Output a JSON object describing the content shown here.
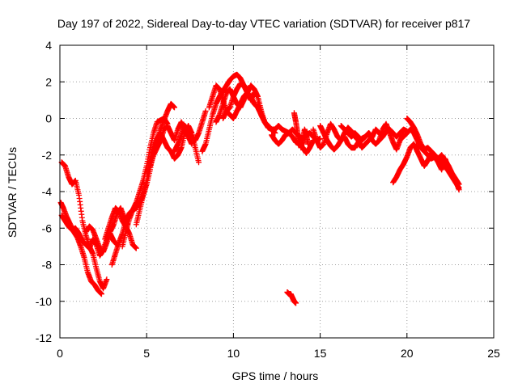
{
  "chart_data": {
    "type": "scatter",
    "title": "Day 197 of 2022, Sidereal Day-to-day VTEC variation (SDTVAR) for receiver p817",
    "xlabel": "GPS time / hours",
    "ylabel": "SDTVAR / TECUs",
    "xlim": [
      0,
      25
    ],
    "ylim": [
      -12,
      4
    ],
    "xticks": [
      0,
      5,
      10,
      15,
      20,
      25
    ],
    "yticks": [
      -12,
      -10,
      -8,
      -6,
      -4,
      -2,
      0,
      2,
      4
    ],
    "grid": true,
    "marker": "+",
    "color": "#ff0000",
    "series": [
      {
        "name": "SDTVAR",
        "tracks": [
          {
            "x": [
              0.1,
              0.3,
              0.5,
              0.7,
              0.9,
              1.1,
              1.3,
              1.5,
              1.7,
              1.9,
              2.1,
              2.3,
              2.5,
              2.7
            ],
            "y": [
              -2.4,
              -2.6,
              -3.2,
              -3.6,
              -3.4,
              -4.2,
              -5.6,
              -6.4,
              -7.0,
              -7.4,
              -8.2,
              -8.9,
              -9.3,
              -8.8
            ]
          },
          {
            "x": [
              0.05,
              0.2,
              0.4,
              0.6,
              0.8,
              1.0,
              1.2,
              1.4,
              1.6,
              1.8,
              2.0,
              2.2,
              2.4
            ],
            "y": [
              -4.6,
              -4.9,
              -5.4,
              -5.8,
              -6.2,
              -6.5,
              -7.0,
              -7.6,
              -8.4,
              -8.9,
              -9.1,
              -9.4,
              -9.6
            ]
          },
          {
            "x": [
              0.1,
              0.3,
              0.5,
              0.7,
              0.9,
              1.1,
              1.3,
              1.5,
              1.7,
              1.9,
              2.1,
              2.3,
              2.5,
              2.7,
              2.9,
              3.1,
              3.3
            ],
            "y": [
              -5.3,
              -5.6,
              -5.9,
              -6.1,
              -6.0,
              -6.3,
              -6.7,
              -6.9,
              -7.1,
              -6.6,
              -6.9,
              -7.5,
              -7.2,
              -6.6,
              -6.3,
              -6.7,
              -6.9
            ]
          },
          {
            "x": [
              1.5,
              1.7,
              1.9,
              2.1,
              2.3,
              2.5,
              2.7,
              2.9,
              3.1,
              3.3,
              3.5,
              3.7,
              3.9
            ],
            "y": [
              -6.2,
              -5.9,
              -6.1,
              -6.6,
              -7.1,
              -7.3,
              -6.8,
              -6.2,
              -5.8,
              -5.2,
              -4.9,
              -5.4,
              -5.8
            ]
          },
          {
            "x": [
              2.6,
              2.8,
              3.0,
              3.2,
              3.4,
              3.6,
              3.8,
              4.0,
              4.2,
              4.4
            ],
            "y": [
              -6.6,
              -6.0,
              -5.4,
              -4.9,
              -5.1,
              -5.6,
              -5.9,
              -6.3,
              -6.9,
              -7.1
            ]
          },
          {
            "x": [
              3.0,
              3.2,
              3.4,
              3.6,
              3.8,
              4.0,
              4.2,
              4.4,
              4.6,
              4.8,
              5.0,
              5.2,
              5.4,
              5.6,
              5.8,
              6.0,
              6.2,
              6.4,
              6.6
            ],
            "y": [
              -8.0,
              -7.4,
              -6.8,
              -6.3,
              -5.6,
              -5.2,
              -5.0,
              -4.9,
              -4.6,
              -4.2,
              -3.6,
              -2.8,
              -1.8,
              -1.2,
              -0.6,
              -0.1,
              0.4,
              0.8,
              0.6
            ]
          },
          {
            "x": [
              3.6,
              3.8,
              4.0,
              4.2,
              4.4,
              4.6,
              4.8,
              5.0,
              5.2,
              5.4,
              5.6,
              5.8,
              6.0,
              6.2
            ],
            "y": [
              -7.0,
              -6.2,
              -5.5,
              -5.0,
              -4.6,
              -4.0,
              -3.4,
              -2.6,
              -1.6,
              -0.8,
              -0.2,
              -0.1,
              0.0,
              -0.3
            ]
          },
          {
            "x": [
              4.4,
              4.6,
              4.8,
              5.0,
              5.2,
              5.4,
              5.6,
              5.8,
              6.0,
              6.2,
              6.4,
              6.6,
              6.8,
              7.0,
              7.2,
              7.4,
              7.6
            ],
            "y": [
              -5.8,
              -5.0,
              -4.2,
              -3.4,
              -2.6,
              -2.0,
              -1.6,
              -1.2,
              -0.6,
              -0.4,
              -0.8,
              -1.2,
              -0.6,
              -0.2,
              -0.6,
              -1.0,
              -1.4
            ]
          },
          {
            "x": [
              5.0,
              5.2,
              5.4,
              5.6,
              5.8,
              6.0,
              6.2,
              6.4,
              6.6,
              6.8,
              7.0,
              7.2,
              7.4,
              7.6,
              7.8,
              8.0
            ],
            "y": [
              -3.0,
              -2.2,
              -1.6,
              -1.1,
              -0.8,
              -1.2,
              -1.6,
              -1.8,
              -2.2,
              -2.0,
              -1.6,
              -0.8,
              -0.4,
              -0.8,
              -1.6,
              -2.4
            ]
          },
          {
            "x": [
              6.6,
              6.8,
              7.0,
              7.2,
              7.4,
              7.6,
              7.8,
              8.0,
              8.2,
              8.4
            ],
            "y": [
              -1.8,
              -1.4,
              -0.9,
              -0.4,
              -0.6,
              -1.0,
              -1.2,
              -0.8,
              -0.2,
              0.4
            ]
          },
          {
            "x": [
              8.2,
              8.4,
              8.6,
              8.8,
              9.0,
              9.2,
              9.4,
              9.6,
              9.8,
              10.0,
              10.2,
              10.4,
              10.6,
              10.8
            ],
            "y": [
              -1.8,
              -1.4,
              -0.6,
              0.2,
              0.8,
              1.2,
              1.5,
              1.8,
              2.1,
              2.3,
              2.4,
              2.2,
              1.8,
              1.6
            ]
          },
          {
            "x": [
              8.6,
              8.8,
              9.0,
              9.2,
              9.4,
              9.6,
              9.8,
              10.0,
              10.2,
              10.4,
              10.6,
              10.8,
              11.0,
              11.2,
              11.4,
              11.6
            ],
            "y": [
              0.6,
              1.2,
              1.8,
              1.6,
              1.0,
              0.4,
              0.6,
              1.2,
              1.6,
              1.9,
              1.8,
              1.4,
              1.0,
              1.4,
              1.2,
              0.4
            ]
          },
          {
            "x": [
              9.0,
              9.2,
              9.4,
              9.6,
              9.8,
              10.0,
              10.2,
              10.4,
              10.6,
              10.8,
              11.0,
              11.2,
              11.4,
              11.6,
              11.8
            ],
            "y": [
              -0.2,
              0.2,
              0.8,
              1.4,
              1.6,
              1.2,
              0.8,
              0.6,
              1.0,
              1.4,
              1.8,
              1.6,
              1.2,
              0.4,
              -0.2
            ]
          },
          {
            "x": [
              9.4,
              9.6,
              9.8,
              10.0,
              10.2,
              10.4,
              10.6,
              10.8,
              11.0,
              11.2,
              11.4,
              11.6,
              11.8,
              12.0,
              12.2,
              12.4
            ],
            "y": [
              0.0,
              0.4,
              0.2,
              0.0,
              0.4,
              0.8,
              1.2,
              1.4,
              1.2,
              0.8,
              0.6,
              0.2,
              -0.2,
              -0.4,
              -0.6,
              -0.8
            ]
          },
          {
            "x": [
              11.4,
              11.6,
              11.8,
              12.0,
              12.2,
              12.4,
              12.6,
              12.8,
              13.0,
              13.2,
              13.4,
              13.6,
              13.8,
              14.0,
              14.2,
              14.4,
              14.6,
              14.8,
              15.0
            ],
            "y": [
              0.8,
              0.2,
              -0.2,
              -0.5,
              -0.6,
              -0.6,
              -0.4,
              -0.6,
              -0.7,
              -0.8,
              -0.6,
              -0.8,
              -1.0,
              -1.1,
              -0.9,
              -0.8,
              -1.0,
              -1.2,
              -1.1
            ]
          },
          {
            "x": [
              12.2,
              12.4,
              12.6,
              12.8,
              13.0,
              13.2,
              13.4,
              13.6,
              13.8,
              14.0,
              14.2,
              14.4,
              14.6
            ],
            "y": [
              -0.9,
              -1.2,
              -1.4,
              -1.2,
              -0.9,
              -0.8,
              -1.0,
              -1.3,
              -1.4,
              -1.6,
              -1.9,
              -1.6,
              -1.2
            ]
          },
          {
            "x": [
              13.5,
              13.6,
              13.7,
              13.8,
              13.9,
              14.0,
              14.1,
              14.2,
              14.3
            ],
            "y": [
              0.3,
              -0.2,
              -0.8,
              -1.3,
              -1.6,
              -1.2,
              -0.6,
              -0.9,
              -1.4
            ]
          },
          {
            "x": [
              14.6,
              14.8,
              15.0,
              15.2,
              15.4,
              15.6,
              15.8,
              16.0,
              16.2,
              16.4,
              16.6,
              16.8,
              17.0,
              17.2,
              17.4,
              17.6,
              17.8,
              18.0
            ],
            "y": [
              -0.6,
              -1.2,
              -1.6,
              -1.4,
              -0.8,
              -0.3,
              -0.6,
              -1.0,
              -1.2,
              -0.8,
              -0.5,
              -0.7,
              -1.0,
              -1.2,
              -1.6,
              -1.4,
              -1.2,
              -1.0
            ]
          },
          {
            "x": [
              15.0,
              15.2,
              15.4,
              15.6,
              15.8,
              16.0,
              16.2,
              16.4,
              16.6,
              16.8,
              17.0,
              17.2,
              17.4,
              17.6,
              17.8,
              18.0,
              18.2,
              18.4,
              18.6
            ],
            "y": [
              -0.4,
              -0.8,
              -1.2,
              -1.5,
              -1.7,
              -1.5,
              -1.2,
              -1.0,
              -1.4,
              -1.6,
              -1.6,
              -1.3,
              -1.1,
              -1.0,
              -0.8,
              -1.2,
              -1.4,
              -1.2,
              -1.0
            ]
          },
          {
            "x": [
              16.2,
              16.4,
              16.6,
              16.8,
              17.0,
              17.2,
              17.4,
              17.6,
              17.8,
              18.0,
              18.2,
              18.4,
              18.6,
              18.8,
              19.0,
              19.2,
              19.4,
              19.6,
              19.8,
              20.0
            ],
            "y": [
              -0.4,
              -0.6,
              -0.8,
              -1.0,
              -0.8,
              -1.0,
              -1.2,
              -1.0,
              -0.8,
              -1.0,
              -0.6,
              -0.8,
              -1.0,
              -0.7,
              -0.6,
              -0.8,
              -1.0,
              -0.8,
              -0.6,
              -0.7
            ]
          },
          {
            "x": [
              18.4,
              18.6,
              18.8,
              19.0,
              19.2,
              19.4,
              19.6,
              19.8
            ],
            "y": [
              -1.2,
              -0.6,
              -0.3,
              -0.8,
              -1.3,
              -1.7,
              -1.2,
              -0.9
            ]
          },
          {
            "x": [
              19.2,
              19.4,
              19.6,
              19.8,
              20.0,
              20.2,
              20.4,
              20.6
            ],
            "y": [
              -3.5,
              -3.2,
              -2.8,
              -2.5,
              -2.1,
              -1.6,
              -1.4,
              -1.8
            ]
          },
          {
            "x": [
              19.8,
              20.0,
              20.2,
              20.4,
              20.6,
              20.8,
              21.0,
              21.2,
              21.4,
              21.6,
              21.8,
              22.0,
              22.2,
              22.4,
              22.6,
              22.8,
              23.0
            ],
            "y": [
              -1.0,
              -0.8,
              -0.6,
              -0.8,
              -1.2,
              -1.6,
              -1.8,
              -2.0,
              -2.2,
              -2.1,
              -2.2,
              -2.4,
              -2.6,
              -2.9,
              -3.2,
              -3.5,
              -3.8
            ]
          },
          {
            "x": [
              20.0,
              20.2,
              20.4,
              20.6,
              20.8,
              21.0,
              21.2,
              21.4,
              21.6,
              21.8,
              22.0,
              22.2,
              22.4,
              22.6,
              22.8,
              23.0
            ],
            "y": [
              0.0,
              -0.2,
              -0.5,
              -0.9,
              -1.4,
              -1.7,
              -1.6,
              -1.8,
              -2.0,
              -2.2,
              -2.0,
              -2.3,
              -2.6,
              -3.0,
              -3.3,
              -3.6
            ]
          },
          {
            "x": [
              20.6,
              20.8,
              21.0,
              21.2,
              21.4,
              21.6,
              21.8,
              22.0,
              22.2,
              22.4,
              22.6,
              22.8,
              23.0
            ],
            "y": [
              -1.8,
              -2.2,
              -2.6,
              -2.3,
              -1.9,
              -2.1,
              -2.4,
              -2.8,
              -2.2,
              -2.7,
              -3.1,
              -3.4,
              -3.9
            ]
          },
          {
            "x": [
              13.1,
              13.2,
              13.3,
              13.4,
              13.5,
              13.6
            ],
            "y": [
              -9.5,
              -9.6,
              -9.6,
              -9.8,
              -10.0,
              -10.1
            ]
          }
        ]
      }
    ]
  }
}
